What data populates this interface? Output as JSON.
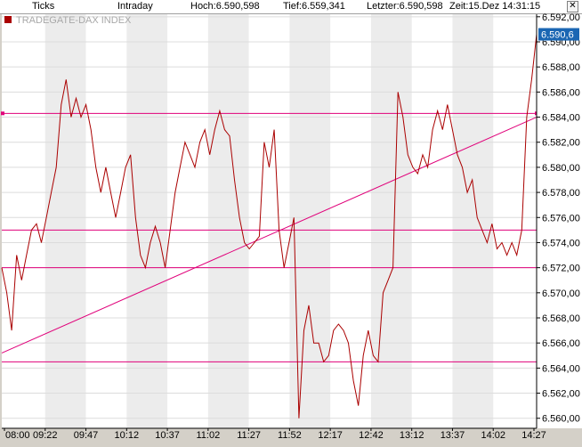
{
  "header": {
    "mode_ticks": "Ticks",
    "mode_intraday": "Intraday",
    "hoch": "Hoch:6.590,598",
    "tief": "Tief:6.559,341",
    "letzter": "Letzter:6.590,598",
    "zeit": "Zeit:15.Dez 14:31:15",
    "close_symbol": "✕"
  },
  "chart_data": {
    "type": "line",
    "title": "TRADEGATE-DAX INDEX",
    "ylim": [
      6559.2,
      6592.2
    ],
    "yticks": [
      "6.592,00",
      "6.590,00",
      "6.588,00",
      "6.586,00",
      "6.584,00",
      "6.582,00",
      "6.580,00",
      "6.578,00",
      "6.576,00",
      "6.574,00",
      "6.572,00",
      "6.570,00",
      "6.568,00",
      "6.566,00",
      "6.564,00",
      "6.562,00",
      "6.560,00"
    ],
    "xticks": [
      "08:00",
      "09:22",
      "09:47",
      "10:12",
      "10:37",
      "11:02",
      "11:27",
      "11:52",
      "12:17",
      "12:42",
      "13:12",
      "13:37",
      "14:02",
      "14:27"
    ],
    "last_value_label": "6.590,6",
    "grid": true,
    "series": [
      {
        "points": [
          [
            0,
            6572
          ],
          [
            1,
            6570
          ],
          [
            2,
            6567
          ],
          [
            3,
            6573
          ],
          [
            4,
            6571
          ],
          [
            5,
            6573
          ],
          [
            6,
            6575
          ],
          [
            7,
            6575.5
          ],
          [
            8,
            6574
          ],
          [
            9,
            6576
          ],
          [
            10,
            6578
          ],
          [
            11,
            6580
          ],
          [
            12,
            6585
          ],
          [
            13,
            6587
          ],
          [
            14,
            6584
          ],
          [
            15,
            6585.5
          ],
          [
            16,
            6584
          ],
          [
            17,
            6585
          ],
          [
            18,
            6583
          ],
          [
            19,
            6580
          ],
          [
            20,
            6578
          ],
          [
            21,
            6580
          ],
          [
            22,
            6578
          ],
          [
            23,
            6576
          ],
          [
            24,
            6578
          ],
          [
            25,
            6580
          ],
          [
            26,
            6581
          ],
          [
            27,
            6576
          ],
          [
            28,
            6573
          ],
          [
            29,
            6572
          ],
          [
            30,
            6574
          ],
          [
            31,
            6575.3
          ],
          [
            32,
            6574
          ],
          [
            33,
            6572
          ],
          [
            34,
            6575
          ],
          [
            35,
            6578
          ],
          [
            36,
            6580
          ],
          [
            37,
            6582
          ],
          [
            38,
            6581
          ],
          [
            39,
            6580
          ],
          [
            40,
            6582
          ],
          [
            41,
            6583
          ],
          [
            42,
            6581
          ],
          [
            43,
            6583
          ],
          [
            44,
            6584.5
          ],
          [
            45,
            6583
          ],
          [
            46,
            6582.5
          ],
          [
            47,
            6579
          ],
          [
            48,
            6576
          ],
          [
            49,
            6574
          ],
          [
            50,
            6573.5
          ],
          [
            51,
            6574
          ],
          [
            52,
            6574.5
          ],
          [
            53,
            6582
          ],
          [
            54,
            6580
          ],
          [
            55,
            6583
          ],
          [
            56,
            6575
          ],
          [
            57,
            6572
          ],
          [
            58,
            6574
          ],
          [
            59,
            6576
          ],
          [
            60,
            6560
          ],
          [
            61,
            6567
          ],
          [
            62,
            6569
          ],
          [
            63,
            6566
          ],
          [
            64,
            6566
          ],
          [
            65,
            6564.5
          ],
          [
            66,
            6565
          ],
          [
            67,
            6567
          ],
          [
            68,
            6567.5
          ],
          [
            69,
            6567
          ],
          [
            70,
            6566
          ],
          [
            71,
            6563
          ],
          [
            72,
            6561
          ],
          [
            73,
            6565
          ],
          [
            74,
            6567
          ],
          [
            75,
            6565
          ],
          [
            76,
            6564.5
          ],
          [
            77,
            6570
          ],
          [
            78,
            6571
          ],
          [
            79,
            6572
          ],
          [
            80,
            6586
          ],
          [
            81,
            6584
          ],
          [
            82,
            6581
          ],
          [
            83,
            6580
          ],
          [
            84,
            6579.5
          ],
          [
            85,
            6581
          ],
          [
            86,
            6580
          ],
          [
            87,
            6583
          ],
          [
            88,
            6584.5
          ],
          [
            89,
            6583
          ],
          [
            90,
            6585
          ],
          [
            91,
            6583
          ],
          [
            92,
            6581
          ],
          [
            93,
            6580
          ],
          [
            94,
            6578
          ],
          [
            95,
            6579
          ],
          [
            96,
            6576
          ],
          [
            97,
            6575
          ],
          [
            98,
            6574
          ],
          [
            99,
            6575.5
          ],
          [
            100,
            6573.5
          ],
          [
            101,
            6574
          ],
          [
            102,
            6573
          ],
          [
            103,
            6574
          ],
          [
            104,
            6573
          ],
          [
            105,
            6575
          ],
          [
            106,
            6584
          ],
          [
            107,
            6587
          ],
          [
            108,
            6590.6
          ]
        ]
      }
    ],
    "reference_lines": [
      6584.3,
      6575.0,
      6572.0,
      6564.5
    ],
    "trendline": [
      [
        0,
        6565.2
      ],
      [
        108,
        6584.0
      ]
    ],
    "line_color": "#aa0000",
    "ref_color": "#e0007a",
    "label_bg": "#1a66b3"
  }
}
